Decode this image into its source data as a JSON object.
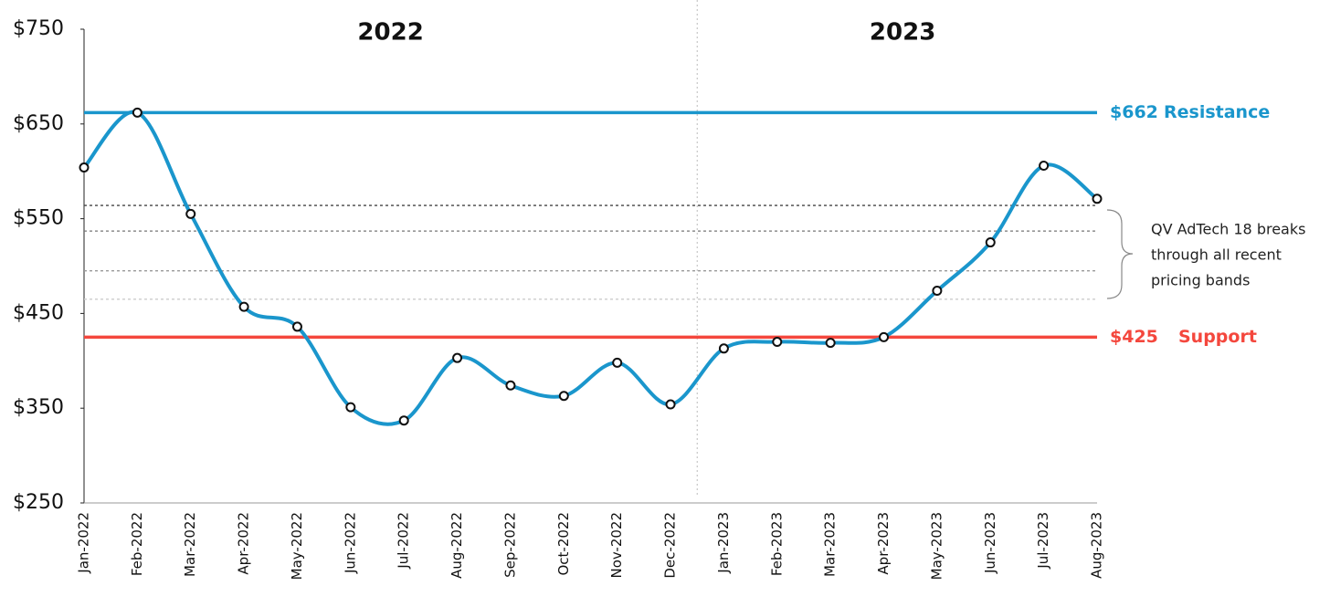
{
  "chart_data": {
    "type": "line",
    "categories": [
      "Jan-2022",
      "Feb-2022",
      "Mar-2022",
      "Apr-2022",
      "May-2022",
      "Jun-2022",
      "Jul-2022",
      "Aug-2022",
      "Sep-2022",
      "Oct-2022",
      "Nov-2022",
      "Dec-2022",
      "Jan-2023",
      "Feb-2023",
      "Mar-2023",
      "Apr-2023",
      "May-2023",
      "Jun-2023",
      "Jul-2023",
      "Aug-2023"
    ],
    "values": [
      604,
      662,
      555,
      457,
      436,
      351,
      337,
      403,
      374,
      363,
      398,
      354,
      413,
      420,
      419,
      425,
      474,
      525,
      606,
      571
    ],
    "color": "#1a96cc",
    "ylim": [
      250,
      750
    ],
    "yticks": [
      {
        "value": 250,
        "label": "$250"
      },
      {
        "value": 350,
        "label": "$350"
      },
      {
        "value": 450,
        "label": "$450"
      },
      {
        "value": 550,
        "label": "$550"
      },
      {
        "value": 650,
        "label": "$650"
      },
      {
        "value": 750,
        "label": "$750"
      }
    ],
    "grid": false,
    "years": [
      "2022",
      "2023"
    ],
    "reference_lines": [
      {
        "value": 662,
        "label": "$662",
        "name": "Resistance",
        "color": "#1a96cc"
      },
      {
        "value": 425,
        "label": "$425",
        "name": "Support",
        "color": "#f4473d"
      }
    ],
    "bands": [
      564,
      537,
      495,
      465
    ],
    "band_colors": [
      "#444444",
      "#777777",
      "#999999",
      "#cccccc"
    ],
    "annotation": [
      "QV AdTech 18 breaks",
      "through all recent",
      "pricing bands"
    ]
  }
}
